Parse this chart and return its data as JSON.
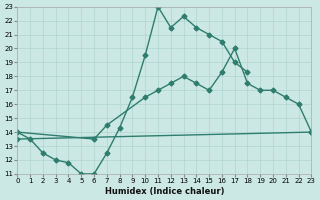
{
  "xlabel": "Humidex (Indice chaleur)",
  "bg_color": "#cce8e4",
  "line_color": "#2e7d6e",
  "grid_color": "#b0d5d0",
  "xlim": [
    0,
    23
  ],
  "ylim": [
    11,
    23
  ],
  "xticks": [
    0,
    1,
    2,
    3,
    4,
    5,
    6,
    7,
    8,
    9,
    10,
    11,
    12,
    13,
    14,
    15,
    16,
    17,
    18,
    19,
    20,
    21,
    22,
    23
  ],
  "yticks": [
    11,
    12,
    13,
    14,
    15,
    16,
    17,
    18,
    19,
    20,
    21,
    22,
    23
  ],
  "line1_x": [
    0,
    1,
    2,
    3,
    4,
    5,
    6,
    7,
    8,
    9,
    10,
    11,
    12,
    13,
    14,
    15,
    16,
    17,
    18
  ],
  "line1_y": [
    14,
    13.5,
    12.5,
    12.0,
    11.8,
    11.0,
    11.0,
    12.5,
    14.3,
    16.5,
    19.5,
    23.0,
    21.5,
    22.3,
    21.5,
    21.0,
    20.5,
    19.0,
    18.3
  ],
  "line2_x": [
    0,
    6,
    7,
    10,
    11,
    12,
    13,
    14,
    15,
    16,
    17,
    18,
    19,
    20,
    21,
    22,
    23
  ],
  "line2_y": [
    14,
    13.5,
    14.5,
    16.5,
    17.0,
    17.5,
    18.0,
    17.5,
    17.0,
    18.3,
    20.0,
    17.5,
    17.0,
    17.0,
    16.5,
    16.0,
    14.0
  ],
  "line3_x": [
    0,
    23
  ],
  "line3_y": [
    13.5,
    14.0
  ],
  "markersize": 2.5,
  "linewidth": 1.0
}
